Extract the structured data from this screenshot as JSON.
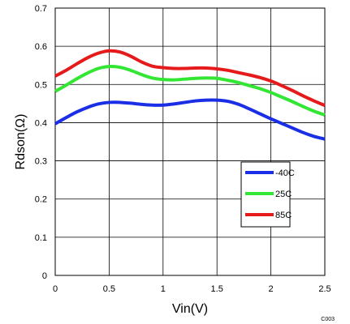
{
  "chart_data": {
    "type": "line",
    "xlabel": "Vin(V)",
    "ylabel": "Rdson(Ω)",
    "xlim": [
      0,
      2.5
    ],
    "ylim": [
      0,
      0.7
    ],
    "x_ticks": [
      0,
      0.5,
      1,
      1.5,
      2,
      2.5
    ],
    "x_tick_labels": [
      "0",
      "0.5",
      "1",
      "1.5",
      "2",
      "2.5"
    ],
    "y_ticks": [
      0,
      0.1,
      0.2,
      0.3,
      0.4,
      0.5,
      0.6,
      0.7
    ],
    "y_tick_labels": [
      "0",
      "0.1",
      "0.2",
      "0.3",
      "0.4",
      "0.5",
      "0.6",
      "0.7"
    ],
    "grid": true,
    "legend_position": "right",
    "figure_code": "C003",
    "series": [
      {
        "name": "-40C",
        "color": "#1a2ee6",
        "x": [
          0,
          0.1,
          0.2,
          0.3,
          0.4,
          0.5,
          0.6,
          0.7,
          0.8,
          0.9,
          1.0,
          1.1,
          1.2,
          1.3,
          1.4,
          1.5,
          1.6,
          1.7,
          1.8,
          1.9,
          2.0,
          2.1,
          2.2,
          2.3,
          2.4,
          2.5
        ],
        "y": [
          0.397,
          0.413,
          0.428,
          0.44,
          0.449,
          0.453,
          0.453,
          0.451,
          0.448,
          0.446,
          0.446,
          0.449,
          0.453,
          0.457,
          0.459,
          0.459,
          0.456,
          0.448,
          0.436,
          0.423,
          0.41,
          0.398,
          0.386,
          0.374,
          0.364,
          0.357
        ]
      },
      {
        "name": "25C",
        "color": "#33e633",
        "x": [
          0,
          0.1,
          0.2,
          0.3,
          0.4,
          0.5,
          0.6,
          0.7,
          0.8,
          0.9,
          1.0,
          1.1,
          1.2,
          1.3,
          1.4,
          1.5,
          1.6,
          1.7,
          1.8,
          1.9,
          2.0,
          2.1,
          2.2,
          2.3,
          2.4,
          2.5
        ],
        "y": [
          0.482,
          0.498,
          0.515,
          0.53,
          0.542,
          0.547,
          0.545,
          0.537,
          0.526,
          0.517,
          0.513,
          0.512,
          0.514,
          0.516,
          0.517,
          0.516,
          0.511,
          0.505,
          0.497,
          0.489,
          0.479,
          0.467,
          0.455,
          0.442,
          0.43,
          0.42
        ]
      },
      {
        "name": "85C",
        "color": "#e61a1a",
        "x": [
          0,
          0.1,
          0.2,
          0.3,
          0.4,
          0.5,
          0.6,
          0.7,
          0.8,
          0.9,
          1.0,
          1.1,
          1.2,
          1.3,
          1.4,
          1.5,
          1.6,
          1.7,
          1.8,
          1.9,
          2.0,
          2.1,
          2.2,
          2.3,
          2.4,
          2.5
        ],
        "y": [
          0.522,
          0.537,
          0.554,
          0.57,
          0.582,
          0.588,
          0.585,
          0.574,
          0.559,
          0.548,
          0.544,
          0.542,
          0.542,
          0.543,
          0.543,
          0.541,
          0.537,
          0.531,
          0.525,
          0.518,
          0.509,
          0.497,
          0.484,
          0.47,
          0.457,
          0.445
        ]
      }
    ]
  }
}
